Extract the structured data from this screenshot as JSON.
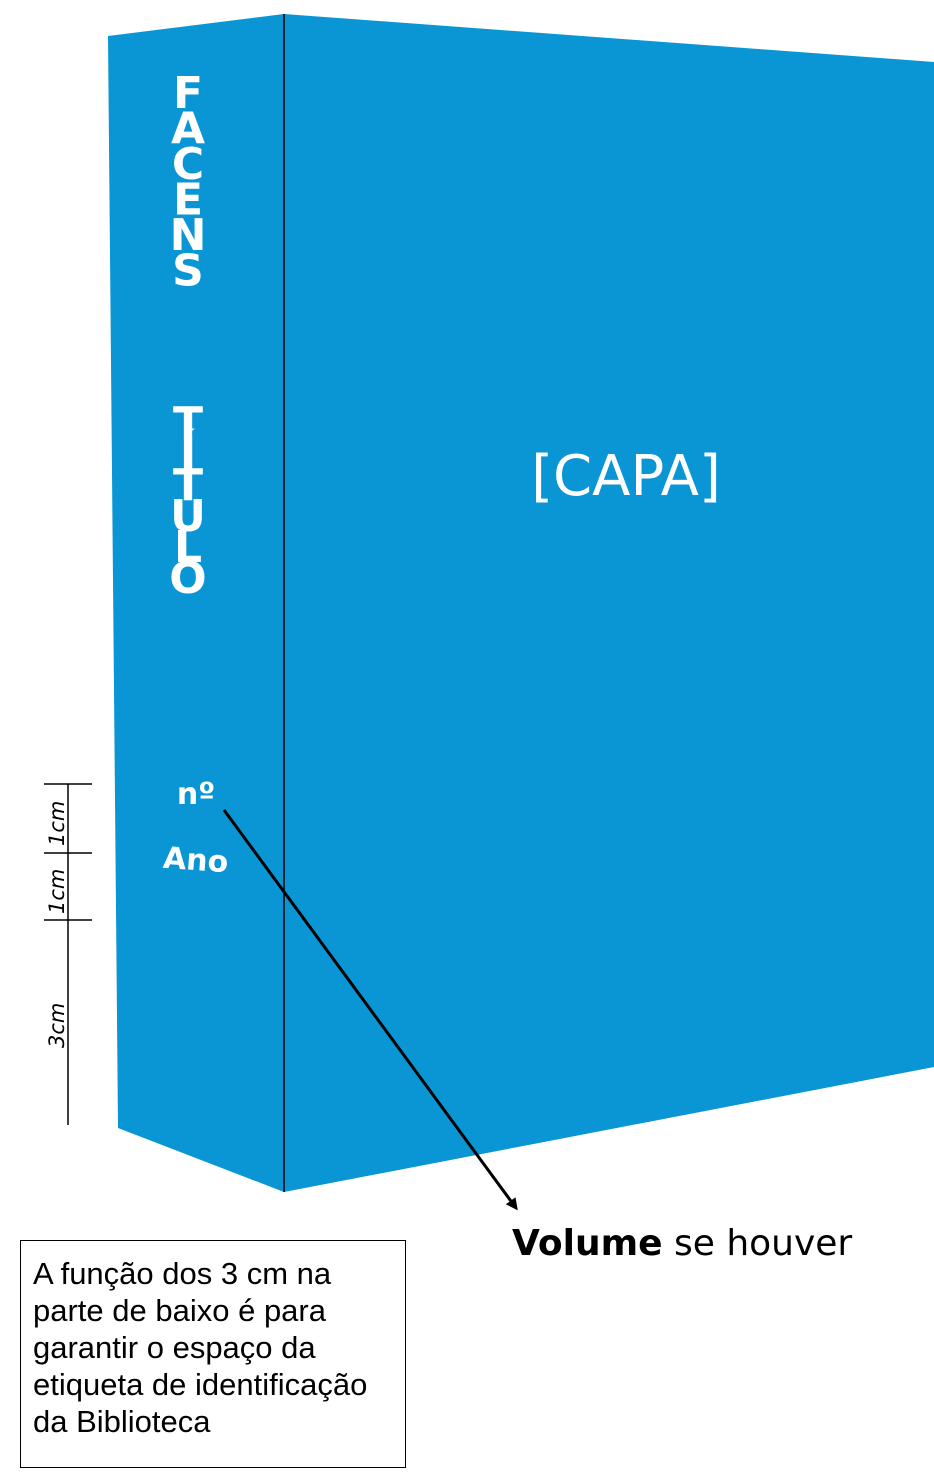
{
  "colors": {
    "spine": "#0A96D4",
    "cover": "#0A96D4",
    "text_on_blue": "#ffffff",
    "lines": "#000000"
  },
  "spine": {
    "top_text": "FACENS",
    "middle_text": "TÍTULO",
    "number_label": "nº",
    "year_label": "Ano"
  },
  "cover": {
    "label": "[CAPA]"
  },
  "dimensions": [
    {
      "label": "1cm"
    },
    {
      "label": "1cm"
    },
    {
      "label": "3cm"
    }
  ],
  "callout": {
    "bold": "Volume",
    "rest": " se houver"
  },
  "note": {
    "text": "A função dos 3 cm na parte de baixo é para garantir o espaço da etiqueta de identificação da Biblioteca"
  }
}
